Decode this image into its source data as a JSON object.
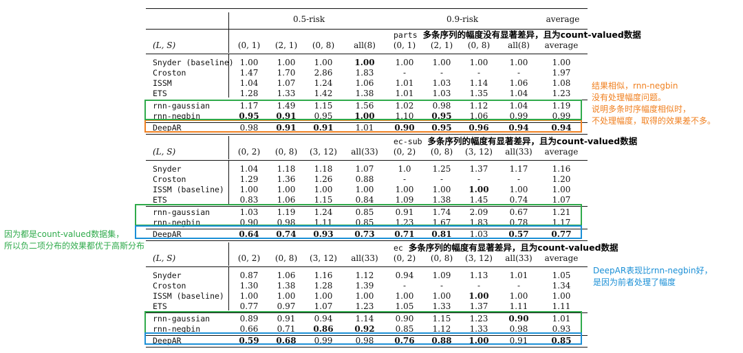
{
  "header": {
    "risk05": "0.5-risk",
    "risk09": "0.9-risk",
    "average": "average"
  },
  "sections": [
    {
      "dataset": "parts",
      "dataset_note": "多条序列的幅度没有显著差异，且为count-valued数据",
      "ls": "(L, S)",
      "columns": [
        "(0, 1)",
        "(2, 1)",
        "(0, 8)",
        "all(8)",
        "(0, 1)",
        "(2, 1)",
        "(0, 8)",
        "all(8)",
        "average"
      ],
      "rows": [
        {
          "name": "Snyder (baseline)",
          "values": [
            "1.00",
            "1.00",
            "1.00",
            "1.00",
            "1.00",
            "1.00",
            "1.00",
            "1.00",
            "1.00"
          ],
          "bold": [
            3
          ]
        },
        {
          "name": "Croston",
          "values": [
            "1.47",
            "1.70",
            "2.86",
            "1.83",
            "-",
            "-",
            "-",
            "-",
            "1.97"
          ],
          "bold": []
        },
        {
          "name": "ISSM",
          "values": [
            "1.04",
            "1.07",
            "1.24",
            "1.06",
            "1.01",
            "1.03",
            "1.14",
            "1.06",
            "1.08"
          ],
          "bold": []
        },
        {
          "name": "ETS",
          "values": [
            "1.28",
            "1.33",
            "1.42",
            "1.38",
            "1.01",
            "1.03",
            "1.35",
            "1.04",
            "1.23"
          ],
          "bold": []
        },
        {
          "name": "rnn-gaussian",
          "values": [
            "1.17",
            "1.49",
            "1.15",
            "1.56",
            "1.02",
            "0.98",
            "1.12",
            "1.04",
            "1.19"
          ],
          "bold": []
        },
        {
          "name": "rnn-negbin",
          "values": [
            "0.95",
            "0.91",
            "0.95",
            "1.00",
            "1.10",
            "0.95",
            "1.06",
            "0.99",
            "0.99"
          ],
          "bold": [
            0,
            1,
            3,
            5
          ]
        },
        {
          "name": "DeepAR",
          "values": [
            "0.98",
            "0.91",
            "0.91",
            "1.01",
            "0.90",
            "0.95",
            "0.96",
            "0.94",
            "0.94"
          ],
          "bold": [
            1,
            2,
            4,
            5,
            6,
            7,
            8
          ]
        }
      ]
    },
    {
      "dataset": "ec-sub",
      "dataset_note": "多条序列的幅度有显著差异，且为count-valued数据",
      "ls": "(L, S)",
      "columns": [
        "(0, 2)",
        "(0, 8)",
        "(3, 12)",
        "all(33)",
        "(0, 2)",
        "(0, 8)",
        "(3, 12)",
        "all(33)",
        "average"
      ],
      "rows": [
        {
          "name": "Snyder",
          "values": [
            "1.04",
            "1.18",
            "1.18",
            "1.07",
            "1.0",
            "1.25",
            "1.37",
            "1.17",
            "1.16"
          ],
          "bold": []
        },
        {
          "name": "Croston",
          "values": [
            "1.29",
            "1.36",
            "1.26",
            "0.88",
            "-",
            "-",
            "-",
            "-",
            "1.20"
          ],
          "bold": []
        },
        {
          "name": "ISSM (baseline)",
          "values": [
            "1.00",
            "1.00",
            "1.00",
            "1.00",
            "1.00",
            "1.00",
            "1.00",
            "1.00",
            "1.00"
          ],
          "bold": [
            6
          ]
        },
        {
          "name": "ETS",
          "values": [
            "0.83",
            "1.06",
            "1.15",
            "0.84",
            "1.09",
            "1.38",
            "1.45",
            "0.74",
            "1.07"
          ],
          "bold": []
        },
        {
          "name": "rnn-gaussian",
          "values": [
            "1.03",
            "1.19",
            "1.24",
            "0.85",
            "0.91",
            "1.74",
            "2.09",
            "0.67",
            "1.21"
          ],
          "bold": []
        },
        {
          "name": "rnn-negbin",
          "values": [
            "0.90",
            "0.98",
            "1.11",
            "0.85",
            "1.23",
            "1.67",
            "1.83",
            "0.78",
            "1.17"
          ],
          "bold": []
        },
        {
          "name": "DeepAR",
          "values": [
            "0.64",
            "0.74",
            "0.93",
            "0.73",
            "0.71",
            "0.81",
            "1.03",
            "0.57",
            "0.77"
          ],
          "bold": [
            0,
            1,
            2,
            3,
            4,
            5,
            7,
            8
          ]
        }
      ]
    },
    {
      "dataset": "ec",
      "dataset_note": "多条序列的幅度有显著差异，且为count-valued数据",
      "ls": "(L, S)",
      "columns": [
        "(0, 2)",
        "(0, 8)",
        "(3, 12)",
        "all(33)",
        "(0, 2)",
        "(0, 8)",
        "(3, 12)",
        "all(33)",
        "average"
      ],
      "rows": [
        {
          "name": "Snyder",
          "values": [
            "0.87",
            "1.06",
            "1.16",
            "1.12",
            "0.94",
            "1.09",
            "1.13",
            "1.01",
            "1.05"
          ],
          "bold": []
        },
        {
          "name": "Croston",
          "values": [
            "1.30",
            "1.38",
            "1.28",
            "1.39",
            "-",
            "-",
            "-",
            "-",
            "1.34"
          ],
          "bold": []
        },
        {
          "name": "ISSM (baseline)",
          "values": [
            "1.00",
            "1.00",
            "1.00",
            "1.00",
            "1.00",
            "1.00",
            "1.00",
            "1.00",
            "1.00"
          ],
          "bold": [
            6
          ]
        },
        {
          "name": "ETS",
          "values": [
            "0.77",
            "0.97",
            "1.07",
            "1.23",
            "1.05",
            "1.33",
            "1.37",
            "1.11",
            "1.11"
          ],
          "bold": []
        },
        {
          "name": "rnn-gaussian",
          "values": [
            "0.89",
            "0.91",
            "0.94",
            "1.14",
            "0.90",
            "1.15",
            "1.23",
            "0.90",
            "1.01"
          ],
          "bold": [
            7
          ]
        },
        {
          "name": "rnn-negbin",
          "values": [
            "0.66",
            "0.71",
            "0.86",
            "0.92",
            "0.85",
            "1.12",
            "1.33",
            "0.98",
            "0.93"
          ],
          "bold": [
            2,
            3
          ]
        },
        {
          "name": "DeepAR",
          "values": [
            "0.59",
            "0.68",
            "0.99",
            "0.98",
            "0.76",
            "0.88",
            "1.00",
            "0.91",
            "0.85"
          ],
          "bold": [
            0,
            1,
            4,
            5,
            6,
            8
          ]
        }
      ]
    }
  ],
  "annotations": {
    "orange": [
      "结果相似，rnn-negbin",
      "没有处理幅度问题。",
      "说明多条时序幅度相似时，",
      "不处理幅度，取得的效果差不多。"
    ],
    "green": [
      "因为都是count-valued数据集，",
      "所以负二项分布的效果都优于高斯分布"
    ],
    "blue": [
      "DeepAR表现比rnn-negbin好，",
      "是因为前者处理了幅度"
    ]
  },
  "colors": {
    "orange": "#f08020",
    "green": "#2eaa4a",
    "blue": "#1a8fd6"
  }
}
